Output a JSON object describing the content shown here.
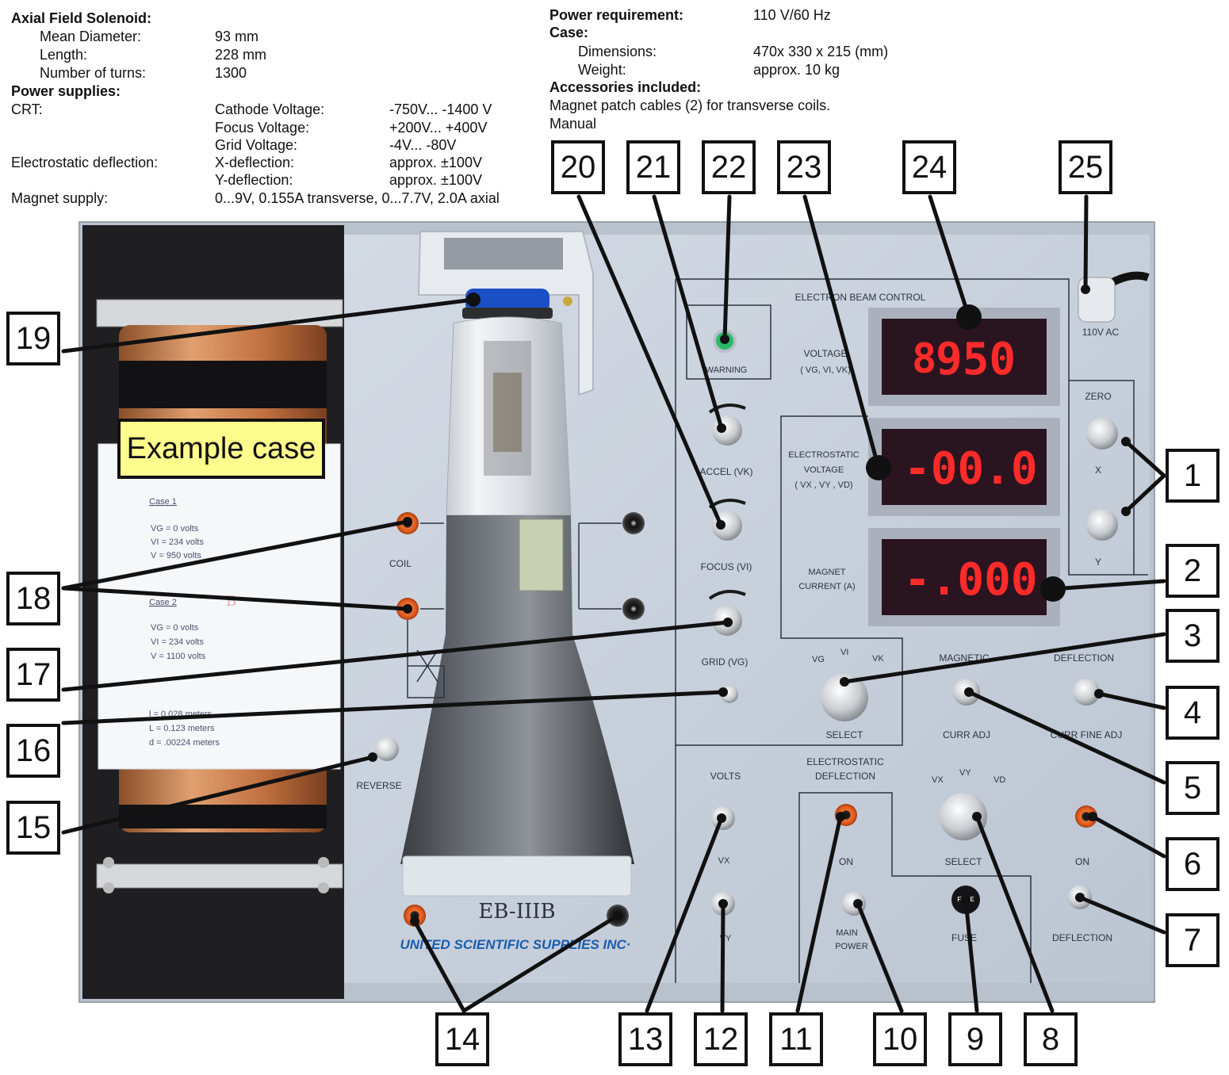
{
  "specs": {
    "left": [
      {
        "text": "Axial Field  Solenoid:",
        "bold": true
      },
      {
        "text": "Mean Diameter:"
      },
      {
        "text": "93 mm"
      },
      {
        "text": "Length:"
      },
      {
        "text": "228 mm"
      },
      {
        "text": "Number of turns:"
      },
      {
        "text": "1300"
      },
      {
        "text": "Power supplies:",
        "bold": true
      },
      {
        "text": "CRT:"
      },
      {
        "text": "Cathode Voltage:"
      },
      {
        "text": "-750V... -1400 V"
      },
      {
        "text": "Focus Voltage:"
      },
      {
        "text": "+200V... +400V"
      },
      {
        "text": "Grid Voltage:"
      },
      {
        "text": "-4V... -80V"
      },
      {
        "text": "Electrostatic deflection:"
      },
      {
        "text": "X-deflection:"
      },
      {
        "text": "approx. ±100V"
      },
      {
        "text": "Y-deflection:"
      },
      {
        "text": "approx. ±100V"
      },
      {
        "text": "Magnet supply:"
      },
      {
        "text": "0...9V, 0.155A transverse, 0...7.7V, 2.0A axial"
      }
    ],
    "right": [
      {
        "text": "Power requirement:",
        "bold": true
      },
      {
        "text": "110 V/60 Hz"
      },
      {
        "text": "Case:",
        "bold": true
      },
      {
        "text": "Dimensions:"
      },
      {
        "text": "470x 330 x 215 (mm)"
      },
      {
        "text": "Weight:"
      },
      {
        "text": "approx. 10 kg"
      },
      {
        "text": "Accessories included:",
        "bold": true
      },
      {
        "text": "Magnet patch cables (2) for transverse coils."
      },
      {
        "text": "Manual"
      }
    ]
  },
  "example_label": "Example case",
  "panel": {
    "title": "ELECTRON  BEAM  CONTROL",
    "warning": "WARNING",
    "voltage": "VOLTAGE",
    "voltage_sub": "( VG, VI, VK)",
    "estatic_1": "ELECTROSTATIC",
    "estatic_2": "VOLTAGE",
    "estatic_3": "( VX , VY , VD)",
    "magnet_1": "MAGNET",
    "magnet_2": "CURRENT (A)",
    "accel": "ACCEL (VK)",
    "focus": "FOCUS (VI)",
    "grid": "GRID (VG)",
    "select": "SELECT",
    "vg": "VG",
    "vi": "VI",
    "vk": "VK",
    "magnetic": "MAGNETIC",
    "curr_adj": "CURR  ADJ",
    "deflection": "DEFLECTION",
    "curr_fine_adj": "CURR FINE ADJ",
    "zero": "ZERO",
    "x": "X",
    "y": "Y",
    "ac": "110V AC",
    "volts": "VOLTS",
    "ed_1": "ELECTROSTATIC",
    "ed_2": "DEFLECTION",
    "vx": "VX",
    "vy": "VY",
    "vd": "VD",
    "on": "ON",
    "main_power_1": "MAIN",
    "main_power_2": "POWER",
    "fuse": "FUSE",
    "fuse_cap": "FUSE",
    "on2": "ON",
    "deflection2": "DEFLECTION",
    "coil": "COIL",
    "reverse": "REVERSE",
    "model": "EB-IIIB",
    "brand": "UNITED SCIENTIFIC SUPPLIES INC·",
    "tube_label": "EB-IIIB"
  },
  "displays": {
    "voltage": "950",
    "voltage_dim": "8",
    "electrostatic": "-00.0",
    "magnet": "-.000"
  },
  "sheet": {
    "case1_title": "Case 1",
    "case1_lines": [
      "VG =   0 volts",
      "VI =  234 volts",
      "V  =  950 volts"
    ],
    "case2_title": "Case 2",
    "case2_lines": [
      "VG =   0 volts",
      "VI =  234 volts",
      "V  =  1100 volts"
    ],
    "params": [
      "l = 0.028  meters",
      "L = 0.123  meters",
      "d = .00224  meters"
    ],
    "handwriting": "B"
  },
  "callouts": [
    "1",
    "2",
    "3",
    "4",
    "5",
    "6",
    "7",
    "8",
    "9",
    "10",
    "11",
    "12",
    "13",
    "14",
    "15",
    "16",
    "17",
    "18",
    "19",
    "20",
    "21",
    "22",
    "23",
    "24",
    "25"
  ],
  "colors": {
    "panel": "#c9d1dd",
    "case": "#222222",
    "copper": "#c47a48",
    "display_bg": "#2a1420",
    "display_digits": "#ff2a2a",
    "jack": "#e2661f",
    "label_fill": "#fdfc8c"
  }
}
